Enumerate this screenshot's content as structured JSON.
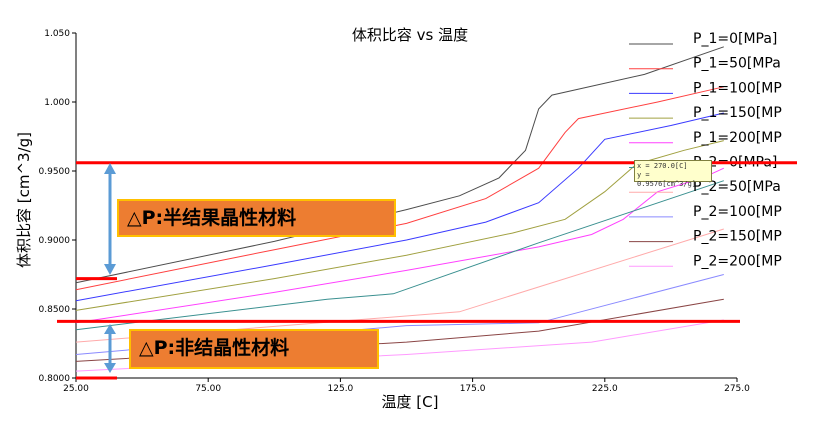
{
  "chart_data": {
    "type": "line",
    "title": "体积比容 vs 温度",
    "xlabel": "温度 [C]",
    "ylabel": "体积比容 [cm^3/g]",
    "xlim": [
      25,
      275
    ],
    "ylim": [
      0.8,
      1.05
    ],
    "x_ticks": [
      "25.00",
      "75.00",
      "125.0",
      "175.0",
      "225.0",
      "275.0"
    ],
    "y_ticks": [
      "0.8000",
      "0.8500",
      "0.9000",
      "0.9500",
      "1.000",
      "1.050"
    ],
    "legend_position": "top-right",
    "series": [
      {
        "name": "P_1=0[MPa]",
        "color": "#4d4d4d",
        "points": [
          [
            25,
            0.869
          ],
          [
            100,
            0.899
          ],
          [
            150,
            0.922
          ],
          [
            170,
            0.932
          ],
          [
            185,
            0.945
          ],
          [
            195,
            0.965
          ],
          [
            200,
            0.995
          ],
          [
            205,
            1.005
          ],
          [
            240,
            1.02
          ],
          [
            270,
            1.04
          ]
        ]
      },
      {
        "name": "P_1=50[MPa",
        "color": "#ff4040",
        "points": [
          [
            25,
            0.864
          ],
          [
            100,
            0.893
          ],
          [
            150,
            0.912
          ],
          [
            180,
            0.93
          ],
          [
            200,
            0.952
          ],
          [
            210,
            0.978
          ],
          [
            215,
            0.988
          ],
          [
            245,
            1.0
          ],
          [
            270,
            1.011
          ]
        ]
      },
      {
        "name": "P_1=100[MP",
        "color": "#3a3aff",
        "points": [
          [
            25,
            0.856
          ],
          [
            100,
            0.882
          ],
          [
            150,
            0.9
          ],
          [
            180,
            0.913
          ],
          [
            200,
            0.927
          ],
          [
            215,
            0.952
          ],
          [
            225,
            0.973
          ],
          [
            250,
            0.983
          ],
          [
            270,
            0.992
          ]
        ]
      },
      {
        "name": "P_1=150[MP",
        "color": "#a0a040",
        "points": [
          [
            25,
            0.849
          ],
          [
            100,
            0.872
          ],
          [
            150,
            0.889
          ],
          [
            190,
            0.905
          ],
          [
            210,
            0.915
          ],
          [
            225,
            0.935
          ],
          [
            237,
            0.955
          ],
          [
            255,
            0.965
          ],
          [
            270,
            0.972
          ]
        ]
      },
      {
        "name": "P_1=200[MP",
        "color": "#ff40ff",
        "points": [
          [
            25,
            0.84
          ],
          [
            100,
            0.862
          ],
          [
            150,
            0.878
          ],
          [
            200,
            0.895
          ],
          [
            220,
            0.904
          ],
          [
            232,
            0.915
          ],
          [
            245,
            0.935
          ],
          [
            262,
            0.945
          ],
          [
            270,
            0.952
          ]
        ]
      },
      {
        "name": "P_2=0[MPa]",
        "color": "#3a9090",
        "points": [
          [
            25,
            0.835
          ],
          [
            120,
            0.857
          ],
          [
            145,
            0.861
          ],
          [
            200,
            0.898
          ],
          [
            270,
            0.943
          ]
        ]
      },
      {
        "name": "P_2=50[MPa",
        "color": "#ffaaaa",
        "points": [
          [
            25,
            0.826
          ],
          [
            170,
            0.848
          ],
          [
            270,
            0.908
          ]
        ]
      },
      {
        "name": "P_2=100[MP",
        "color": "#8a8aff",
        "points": [
          [
            25,
            0.817
          ],
          [
            150,
            0.838
          ],
          [
            200,
            0.84
          ],
          [
            270,
            0.875
          ]
        ]
      },
      {
        "name": "P_2=150[MP",
        "color": "#8a4545",
        "points": [
          [
            25,
            0.812
          ],
          [
            150,
            0.826
          ],
          [
            200,
            0.834
          ],
          [
            270,
            0.857
          ]
        ]
      },
      {
        "name": "P_2=200[MP",
        "color": "#ff9aff",
        "points": [
          [
            25,
            0.805
          ],
          [
            150,
            0.817
          ],
          [
            220,
            0.826
          ],
          [
            270,
            0.842
          ]
        ]
      }
    ],
    "reference_lines": [
      {
        "y": 0.956,
        "color": "#ff0000"
      },
      {
        "y": 0.872,
        "color": "#ff0000"
      },
      {
        "y": 0.841,
        "color": "#ff0000"
      },
      {
        "y": 0.8,
        "color": "#ff0000"
      }
    ],
    "tooltip": {
      "x_text": "x = 270.0[C]",
      "y_text": "y = 0.9576[cm^3/g]"
    },
    "annotations": [
      {
        "text": "△P:半结果晶性材料"
      },
      {
        "text": "△P:非结晶性材料"
      }
    ]
  }
}
